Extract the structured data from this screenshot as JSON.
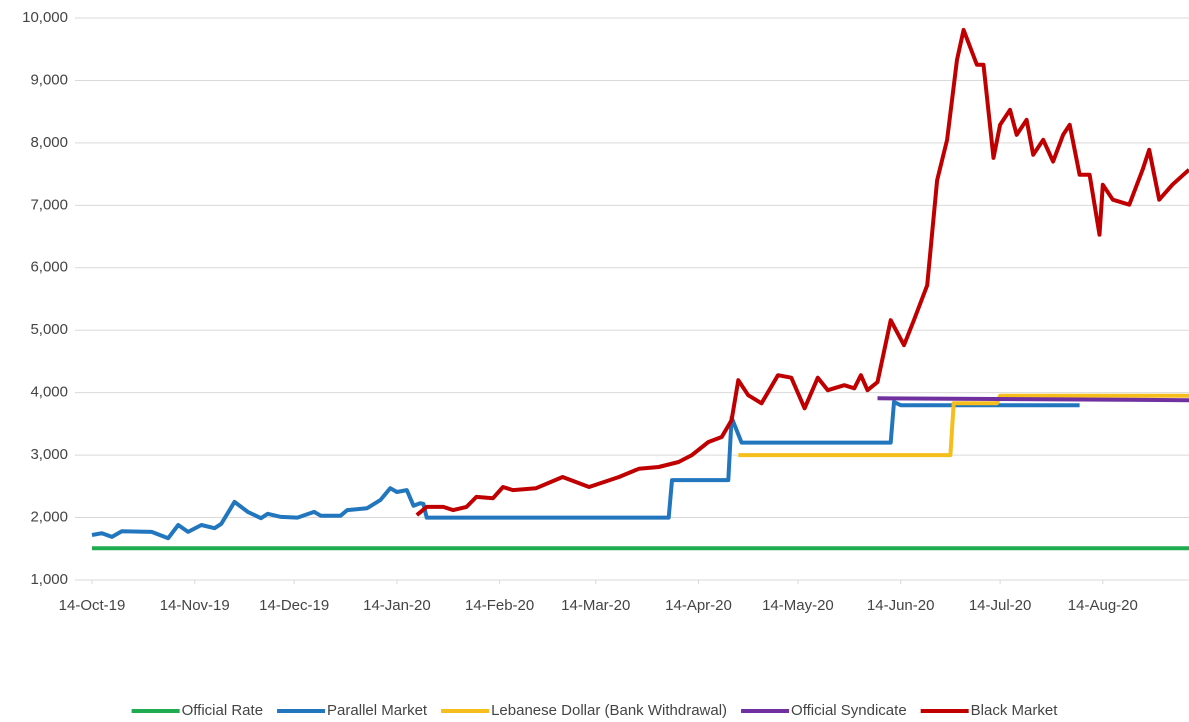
{
  "chart_data": {
    "type": "line",
    "ylim": [
      1000,
      10000
    ],
    "yticks": [
      {
        "value": 1000,
        "label": "1,000"
      },
      {
        "value": 2000,
        "label": "2,000"
      },
      {
        "value": 3000,
        "label": "3,000"
      },
      {
        "value": 4000,
        "label": "4,000"
      },
      {
        "value": 5000,
        "label": "5,000"
      },
      {
        "value": 6000,
        "label": "6,000"
      },
      {
        "value": 7000,
        "label": "7,000"
      },
      {
        "value": 8000,
        "label": "8,000"
      },
      {
        "value": 9000,
        "label": "9,000"
      },
      {
        "value": 10000,
        "label": "10,000"
      }
    ],
    "xlim": [
      "2019-10-14",
      "2020-09-09"
    ],
    "xticks": [
      {
        "value": "2019-10-14",
        "label": "14-Oct-19"
      },
      {
        "value": "2019-11-14",
        "label": "14-Nov-19"
      },
      {
        "value": "2019-12-14",
        "label": "14-Dec-19"
      },
      {
        "value": "2020-01-14",
        "label": "14-Jan-20"
      },
      {
        "value": "2020-02-14",
        "label": "14-Feb-20"
      },
      {
        "value": "2020-03-14",
        "label": "14-Mar-20"
      },
      {
        "value": "2020-04-14",
        "label": "14-Apr-20"
      },
      {
        "value": "2020-05-14",
        "label": "14-May-20"
      },
      {
        "value": "2020-06-14",
        "label": "14-Jun-20"
      },
      {
        "value": "2020-07-14",
        "label": "14-Jul-20"
      },
      {
        "value": "2020-08-14",
        "label": "14-Aug-20"
      }
    ],
    "grid": true,
    "legend": "bottom",
    "series": [
      {
        "name": "Official Rate",
        "color": "#1fab4f",
        "x": [
          "2019-10-14",
          "2020-09-09"
        ],
        "values": [
          1507.5,
          1507.5
        ]
      },
      {
        "name": "Parallel Market",
        "color": "#2176bd",
        "x": [
          "2019-10-14",
          "2019-10-17",
          "2019-10-20",
          "2019-10-23",
          "2019-11-01",
          "2019-11-06",
          "2019-11-09",
          "2019-11-12",
          "2019-11-16",
          "2019-11-20",
          "2019-11-22",
          "2019-11-26",
          "2019-11-30",
          "2019-12-04",
          "2019-12-06",
          "2019-12-10",
          "2019-12-15",
          "2019-12-20",
          "2019-12-22",
          "2019-12-28",
          "2019-12-30",
          "2020-01-05",
          "2020-01-09",
          "2020-01-12",
          "2020-01-14",
          "2020-01-17",
          "2020-01-19",
          "2020-01-21",
          "2020-01-22",
          "2020-01-23",
          "2020-04-05",
          "2020-04-06",
          "2020-04-23",
          "2020-04-24",
          "2020-04-27",
          "2020-06-11",
          "2020-06-12",
          "2020-06-14",
          "2020-08-07"
        ],
        "values": [
          1720,
          1750,
          1690,
          1780,
          1770,
          1670,
          1880,
          1770,
          1880,
          1830,
          1900,
          2250,
          2090,
          1990,
          2060,
          2010,
          2000,
          2090,
          2030,
          2030,
          2120,
          2150,
          2280,
          2470,
          2410,
          2440,
          2190,
          2230,
          2220,
          2000,
          2000,
          2600,
          2600,
          3600,
          3200,
          3200,
          3850,
          3800,
          3800
        ]
      },
      {
        "name": "Lebanese Dollar (Bank Withdrawal)",
        "color": "#f5be1c",
        "x": [
          "2020-04-26",
          "2020-06-29",
          "2020-06-30",
          "2020-07-13",
          "2020-07-14",
          "2020-09-09"
        ],
        "values": [
          3000,
          3000,
          3830,
          3830,
          3950,
          3950
        ]
      },
      {
        "name": "Official Syndicate",
        "color": "#7030a0",
        "x": [
          "2020-06-07",
          "2020-09-09"
        ],
        "values": [
          3910,
          3880
        ]
      },
      {
        "name": "Black Market",
        "color": "#c00000",
        "x": [
          "2020-01-20",
          "2020-01-23",
          "2020-01-28",
          "2020-01-31",
          "2020-02-04",
          "2020-02-07",
          "2020-02-12",
          "2020-02-15",
          "2020-02-18",
          "2020-02-25",
          "2020-03-04",
          "2020-03-12",
          "2020-03-21",
          "2020-03-27",
          "2020-04-02",
          "2020-04-08",
          "2020-04-12",
          "2020-04-17",
          "2020-04-21",
          "2020-04-24",
          "2020-04-26",
          "2020-04-29",
          "2020-05-03",
          "2020-05-08",
          "2020-05-12",
          "2020-05-16",
          "2020-05-20",
          "2020-05-23",
          "2020-05-28",
          "2020-05-31",
          "2020-06-02",
          "2020-06-04",
          "2020-06-07",
          "2020-06-11",
          "2020-06-15",
          "2020-06-18",
          "2020-06-22",
          "2020-06-25",
          "2020-06-28",
          "2020-07-01",
          "2020-07-03",
          "2020-07-07",
          "2020-07-09",
          "2020-07-12",
          "2020-07-14",
          "2020-07-17",
          "2020-07-19",
          "2020-07-22",
          "2020-07-24",
          "2020-07-27",
          "2020-07-30",
          "2020-08-02",
          "2020-08-04",
          "2020-08-07",
          "2020-08-10",
          "2020-08-13",
          "2020-08-14",
          "2020-08-17",
          "2020-08-22",
          "2020-08-26",
          "2020-08-28",
          "2020-08-31",
          "2020-09-04",
          "2020-09-09"
        ],
        "values": [
          2040,
          2170,
          2170,
          2120,
          2170,
          2330,
          2310,
          2490,
          2440,
          2470,
          2650,
          2490,
          2650,
          2780,
          2810,
          2890,
          3000,
          3210,
          3290,
          3560,
          4200,
          3960,
          3830,
          4280,
          4240,
          3750,
          4240,
          4040,
          4120,
          4070,
          4280,
          4040,
          4170,
          5160,
          4760,
          5160,
          5720,
          7400,
          8050,
          9330,
          9810,
          9250,
          9250,
          7760,
          8290,
          8530,
          8130,
          8370,
          7810,
          8050,
          7700,
          8130,
          8290,
          7490,
          7490,
          6530,
          7330,
          7090,
          7010,
          7570,
          7890,
          7090,
          7330,
          7570
        ]
      }
    ]
  }
}
